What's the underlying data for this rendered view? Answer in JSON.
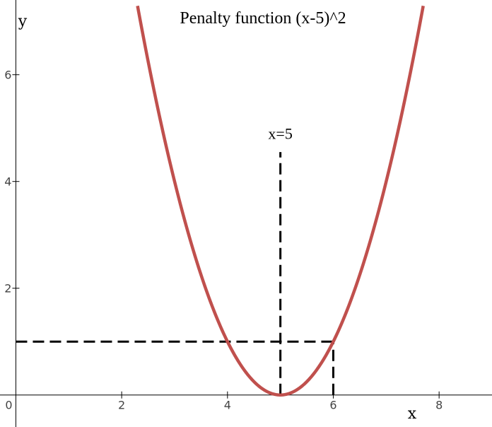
{
  "chart_data": {
    "type": "line",
    "title": "Penalty function (x-5)^2",
    "xlabel": "x",
    "ylabel": "y",
    "xlim": [
      -0.3,
      9.0
    ],
    "ylim": [
      -0.6,
      7.4
    ],
    "x_ticks": [
      0,
      2,
      4,
      6,
      8
    ],
    "y_ticks": [
      2,
      4,
      6
    ],
    "x_tick_labels": [
      "0",
      "2",
      "4",
      "6",
      "8"
    ],
    "y_tick_labels": [
      "2",
      "4",
      "6"
    ],
    "grid": false,
    "series": [
      {
        "function": "(x-5)^2",
        "color": "#c0504d",
        "x": [
          2.3,
          2.5,
          3.0,
          3.5,
          4.0,
          4.5,
          5.0,
          5.5,
          6.0,
          6.5,
          7.0,
          7.5,
          7.7
        ],
        "y": [
          7.29,
          6.25,
          4.0,
          2.25,
          1.0,
          0.25,
          0.0,
          0.25,
          1.0,
          2.25,
          4.0,
          6.25,
          7.29
        ]
      }
    ],
    "annotations": [
      {
        "text": "x=5",
        "x": 5,
        "y": 4.8
      }
    ],
    "reference_lines": [
      {
        "type": "vertical",
        "x": 5,
        "y_from": 0,
        "y_to": 4.55,
        "style": "dashed",
        "color": "#000000"
      },
      {
        "type": "vertical",
        "x": 6,
        "y_from": 0,
        "y_to": 1,
        "style": "dashed",
        "color": "#000000"
      },
      {
        "type": "horizontal",
        "y": 1,
        "x_from": 0,
        "x_to": 6,
        "style": "dashed",
        "color": "#000000"
      }
    ]
  }
}
